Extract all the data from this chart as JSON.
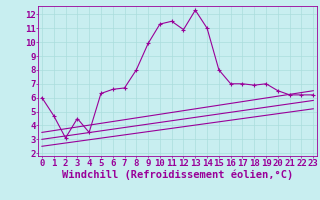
{
  "title": "",
  "xlabel": "Windchill (Refroidissement éolien,°C)",
  "ylabel": "",
  "bg_color": "#c8eef0",
  "line_color": "#990099",
  "grid_color": "#aadddd",
  "x_ticks": [
    0,
    1,
    2,
    3,
    4,
    5,
    6,
    7,
    8,
    9,
    10,
    11,
    12,
    13,
    14,
    15,
    16,
    17,
    18,
    19,
    20,
    21,
    22,
    23
  ],
  "y_ticks": [
    2,
    3,
    4,
    5,
    6,
    7,
    8,
    9,
    10,
    11,
    12
  ],
  "ylim": [
    1.8,
    12.6
  ],
  "xlim": [
    -0.3,
    23.3
  ],
  "series1_x": [
    0,
    1,
    2,
    3,
    4,
    5,
    6,
    7,
    8,
    9,
    10,
    11,
    12,
    13,
    14,
    15,
    16,
    17,
    18,
    19,
    20,
    21,
    22,
    23
  ],
  "series1_y": [
    6.0,
    4.7,
    3.1,
    4.5,
    3.5,
    6.3,
    6.6,
    6.7,
    8.0,
    9.9,
    11.3,
    11.5,
    10.9,
    12.3,
    11.0,
    8.0,
    7.0,
    7.0,
    6.9,
    7.0,
    6.5,
    6.2,
    6.2,
    6.2
  ],
  "series2_x": [
    0,
    23
  ],
  "series2_y": [
    3.5,
    6.5
  ],
  "series3_x": [
    0,
    23
  ],
  "series3_y": [
    3.0,
    5.8
  ],
  "series4_x": [
    0,
    23
  ],
  "series4_y": [
    2.5,
    5.2
  ],
  "font_family": "monospace",
  "font_size": 6.5,
  "xlabel_font_size": 7.5
}
